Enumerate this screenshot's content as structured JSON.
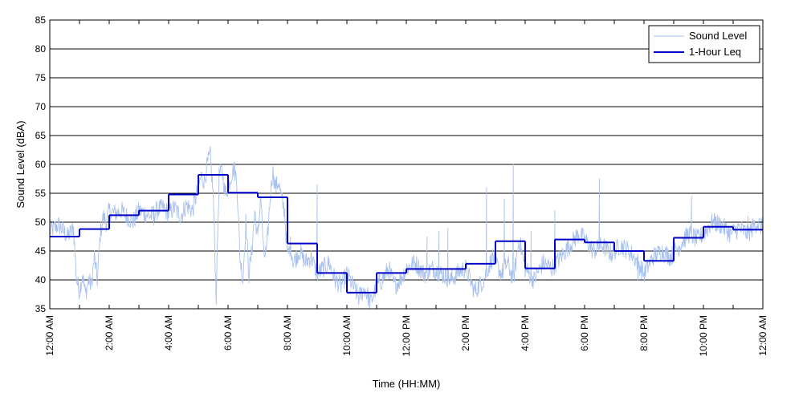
{
  "chart_data": {
    "type": "line",
    "title": "",
    "xlabel": "Time (HH:MM)",
    "ylabel": "Sound Level (dBA)",
    "x_unit": "hours",
    "xlim": [
      0,
      24
    ],
    "ylim": [
      35,
      85
    ],
    "y_ticks": [
      35,
      40,
      45,
      50,
      55,
      60,
      65,
      70,
      75,
      80,
      85
    ],
    "x_ticks": [
      0,
      2,
      4,
      6,
      8,
      10,
      12,
      14,
      16,
      18,
      20,
      22,
      24
    ],
    "x_tick_labels": [
      "12:00 AM",
      "2:00 AM",
      "4:00 AM",
      "6:00 AM",
      "8:00 AM",
      "10:00 AM",
      "12:00 PM",
      "2:00 PM",
      "4:00 PM",
      "6:00 PM",
      "8:00 PM",
      "10:00 PM",
      "12:00 AM"
    ],
    "grid": "horizontal",
    "legend": {
      "placement": "top-right"
    },
    "series": [
      {
        "name": "Sound Level",
        "style": "thin",
        "color": "#a9c1ee",
        "x": [
          0,
          0.3,
          0.6,
          0.8,
          0.9,
          1.0,
          1.1,
          1.2,
          1.3,
          1.4,
          1.5,
          1.6,
          1.7,
          1.8,
          1.9,
          2.0,
          2.2,
          2.4,
          2.6,
          2.8,
          3.0,
          3.2,
          3.4,
          3.6,
          3.8,
          4.0,
          4.2,
          4.4,
          4.6,
          4.8,
          5.0,
          5.1,
          5.2,
          5.3,
          5.4,
          5.5,
          5.6,
          5.7,
          5.8,
          5.9,
          6.0,
          6.1,
          6.2,
          6.3,
          6.4,
          6.5,
          6.6,
          6.7,
          6.8,
          6.9,
          7.0,
          7.1,
          7.2,
          7.3,
          7.4,
          7.5,
          7.6,
          7.7,
          7.8,
          7.9,
          8.0,
          8.1,
          8.2,
          8.4,
          8.6,
          8.8,
          9.0,
          9.2,
          9.4,
          9.6,
          9.8,
          10.0,
          10.2,
          10.4,
          10.6,
          10.8,
          11.0,
          11.2,
          11.4,
          11.6,
          11.8,
          12.0,
          12.3,
          12.6,
          12.9,
          13.2,
          13.5,
          13.8,
          14.0,
          14.3,
          14.6,
          14.9,
          15.2,
          15.4,
          15.6,
          15.8,
          16.0,
          16.3,
          16.6,
          16.9,
          17.2,
          17.5,
          17.8,
          18.0,
          18.3,
          18.6,
          18.9,
          19.2,
          19.5,
          19.8,
          20.0,
          20.3,
          20.6,
          20.9,
          21.2,
          21.5,
          21.8,
          22.0,
          22.3,
          22.6,
          22.9,
          23.2,
          23.5,
          23.8,
          24.0
        ],
        "y": [
          48.5,
          49.5,
          47.5,
          49,
          40,
          38,
          41,
          37.5,
          40,
          39,
          44,
          40,
          48,
          51,
          50,
          52,
          51.5,
          52,
          51,
          50,
          52,
          51.5,
          51,
          52,
          52.5,
          51.5,
          52.5,
          51,
          53,
          52,
          56,
          58,
          57,
          60,
          61.5,
          55,
          37,
          58,
          59,
          55,
          56,
          58,
          59.5,
          57,
          44,
          40,
          50,
          41,
          45,
          52,
          47,
          55,
          44,
          45,
          53,
          59,
          56,
          57,
          54,
          52,
          44,
          46,
          43,
          45,
          43,
          44,
          41,
          42,
          43,
          40,
          39,
          41,
          39,
          37,
          38.5,
          36,
          39,
          40,
          42,
          39,
          40,
          42,
          43,
          41,
          42,
          41,
          40,
          41.5,
          42,
          38,
          40,
          44,
          41,
          43,
          40,
          47,
          42,
          40,
          43,
          42,
          44,
          46,
          48,
          47,
          45,
          46,
          44.5,
          46,
          45,
          43,
          41,
          44,
          45,
          44,
          46,
          48,
          47,
          48,
          50,
          49.5,
          48,
          49,
          48,
          50,
          49
        ],
        "spikes": [
          {
            "x": 3.5,
            "y": 49.5
          },
          {
            "x": 9.0,
            "y": 56.5
          },
          {
            "x": 14.7,
            "y": 56
          },
          {
            "x": 15.3,
            "y": 54
          },
          {
            "x": 15.6,
            "y": 60
          },
          {
            "x": 17.0,
            "y": 52
          },
          {
            "x": 18.5,
            "y": 57.5
          },
          {
            "x": 19.8,
            "y": 40
          },
          {
            "x": 21.6,
            "y": 54.5
          },
          {
            "x": 22.4,
            "y": 51
          },
          {
            "x": 23.5,
            "y": 51
          },
          {
            "x": 12.7,
            "y": 47.5
          },
          {
            "x": 13.1,
            "y": 48.5
          },
          {
            "x": 13.4,
            "y": 49
          },
          {
            "x": 16.2,
            "y": 48.5
          }
        ]
      },
      {
        "name": "1-Hour Leq",
        "style": "step",
        "color": "#0000c8",
        "x": [
          0,
          1,
          2,
          3,
          4,
          5,
          6,
          7,
          8,
          9,
          10,
          11,
          12,
          13,
          14,
          15,
          16,
          17,
          18,
          19,
          20,
          21,
          22,
          23
        ],
        "y": [
          47.5,
          48.8,
          51.2,
          52.0,
          54.8,
          58.2,
          55.1,
          54.3,
          46.3,
          41.2,
          37.8,
          41.2,
          41.9,
          41.9,
          42.8,
          46.7,
          42.0,
          47.0,
          46.5,
          45.0,
          43.3,
          47.3,
          49.2,
          48.7
        ]
      }
    ]
  }
}
